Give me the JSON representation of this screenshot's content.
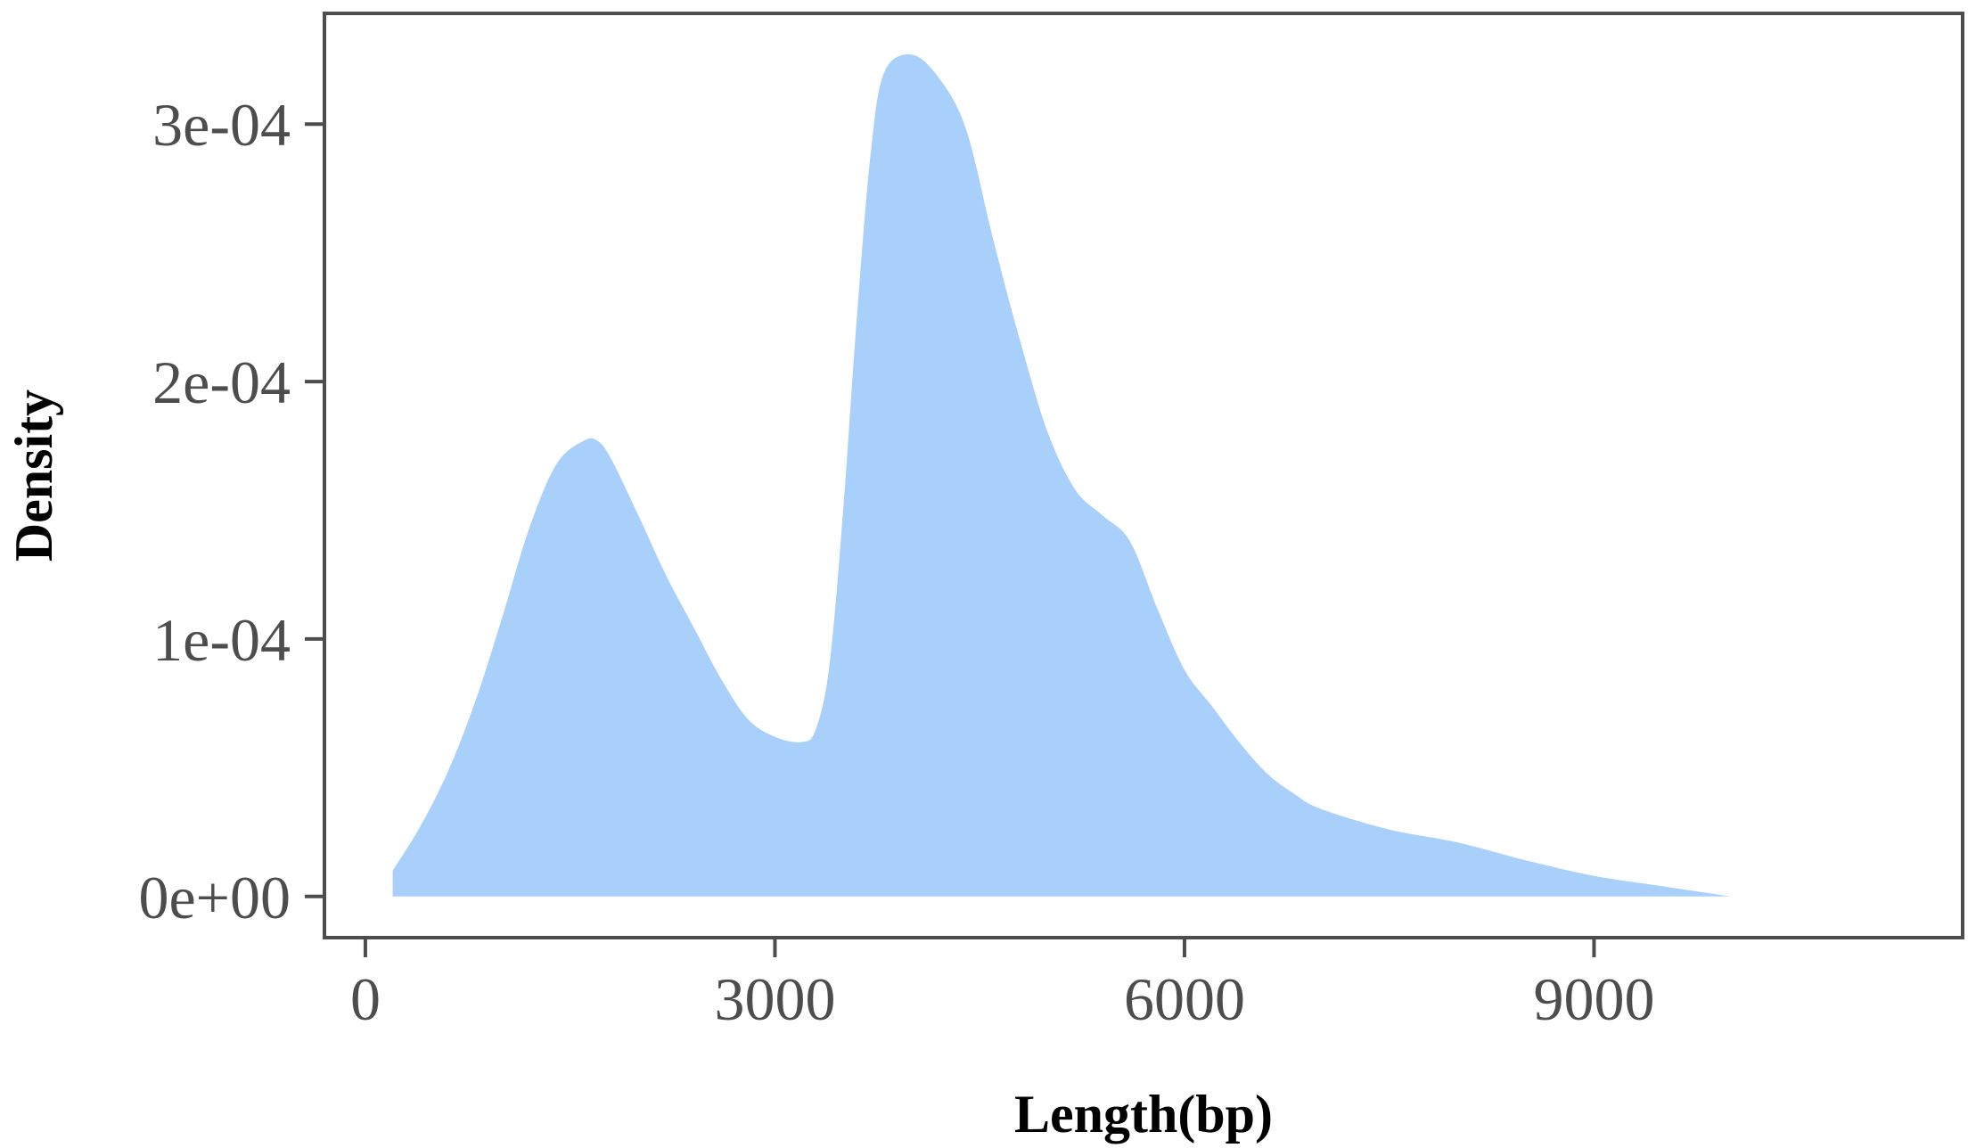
{
  "chart_data": {
    "type": "area",
    "title": "",
    "xlabel": "Length(bp)",
    "ylabel": "Density",
    "xlim": [
      -300,
      11700
    ],
    "ylim": [
      -1.6e-05,
      0.000343
    ],
    "x_ticks": [
      0,
      3000,
      6000,
      9000
    ],
    "x_tick_labels": [
      "0",
      "3000",
      "6000",
      "9000"
    ],
    "y_ticks": [
      0,
      0.0001,
      0.0002,
      0.0003
    ],
    "y_tick_labels": [
      "0e+00",
      "1e-04",
      "2e-04",
      "3e-04"
    ],
    "grid": false,
    "legend": "none",
    "fill_color": "#a8d0fa",
    "series": [
      {
        "x": [
          200,
          400,
          600,
          800,
          1000,
          1200,
          1400,
          1600,
          1700,
          1800,
          2000,
          2200,
          2400,
          2600,
          2800,
          3000,
          3200,
          3300,
          3400,
          3500,
          3600,
          3700,
          3800,
          4000,
          4200,
          4400,
          4600,
          4800,
          5000,
          5200,
          5400,
          5600,
          5800,
          6000,
          6200,
          6400,
          6600,
          6800,
          7000,
          7500,
          8000,
          8500,
          9000,
          9500,
          10000
        ],
        "y": [
          1e-05,
          2.7e-05,
          4.8e-05,
          7.5e-05,
          0.000108,
          0.000143,
          0.000168,
          0.000177,
          0.000177,
          0.00017,
          0.000148,
          0.000125,
          0.000105,
          8.5e-05,
          6.9e-05,
          6.2e-05,
          6e-05,
          6.5e-05,
          9e-05,
          0.00015,
          0.000225,
          0.000288,
          0.00032,
          0.000327,
          0.000318,
          0.000298,
          0.000255,
          0.000215,
          0.00018,
          0.000158,
          0.000148,
          0.000138,
          0.000112,
          8.8e-05,
          7.4e-05,
          6e-05,
          4.8e-05,
          4e-05,
          3.4e-05,
          2.6e-05,
          2.1e-05,
          1.4e-05,
          8e-06,
          4e-06,
          0
        ]
      }
    ]
  }
}
